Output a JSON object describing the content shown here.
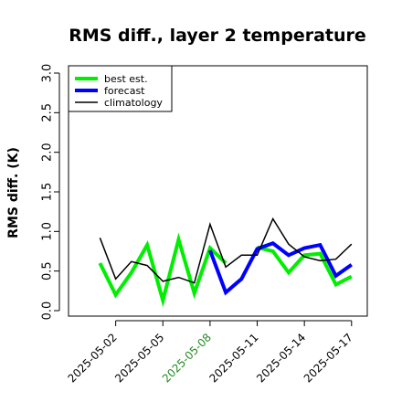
{
  "chart_data": {
    "type": "line",
    "title": "RMS diff., layer 2 temperature",
    "ylabel": "RMS diff. (K)",
    "xlabel": "",
    "ylim": [
      0.0,
      3.0
    ],
    "yticks": [
      "0.0",
      "0.5",
      "1.0",
      "1.5",
      "2.0",
      "2.5",
      "3.0"
    ],
    "x_labels": [
      {
        "text": "2025-05-02",
        "color": "#000000"
      },
      {
        "text": "2025-05-05",
        "color": "#000000"
      },
      {
        "text": "2025-05-08",
        "color": "#228B22"
      },
      {
        "text": "2025-05-11",
        "color": "#000000"
      },
      {
        "text": "2025-05-14",
        "color": "#000000"
      },
      {
        "text": "2025-05-17",
        "color": "#000000"
      }
    ],
    "x": [
      "2025-05-01",
      "2025-05-02",
      "2025-05-03",
      "2025-05-04",
      "2025-05-05",
      "2025-05-06",
      "2025-05-07",
      "2025-05-08",
      "2025-05-09",
      "2025-05-10",
      "2025-05-11",
      "2025-05-12",
      "2025-05-13",
      "2025-05-14",
      "2025-05-15",
      "2025-05-16",
      "2025-05-17"
    ],
    "x_range": [
      "2025-04-29",
      "2025-05-18"
    ],
    "legend": "top-left",
    "grid": false,
    "series": [
      {
        "name": "best est.",
        "color": "#00ee00",
        "width": 4,
        "values": [
          0.6,
          0.2,
          0.48,
          0.83,
          0.13,
          0.9,
          0.22,
          0.79,
          0.6,
          null,
          0.8,
          0.75,
          0.48,
          0.7,
          0.72,
          0.33,
          0.43
        ]
      },
      {
        "name": "forecast",
        "color": "#0000ff",
        "width": 4,
        "values": [
          null,
          null,
          null,
          null,
          null,
          null,
          null,
          0.76,
          0.23,
          0.4,
          0.78,
          0.85,
          0.7,
          0.79,
          0.83,
          0.44,
          0.58
        ]
      },
      {
        "name": "climatology",
        "color": "#000000",
        "width": 1.5,
        "values": [
          0.92,
          0.4,
          0.62,
          0.57,
          0.37,
          0.42,
          0.35,
          1.09,
          0.55,
          0.7,
          0.7,
          1.16,
          0.84,
          0.68,
          0.63,
          0.65,
          0.84
        ]
      }
    ]
  }
}
